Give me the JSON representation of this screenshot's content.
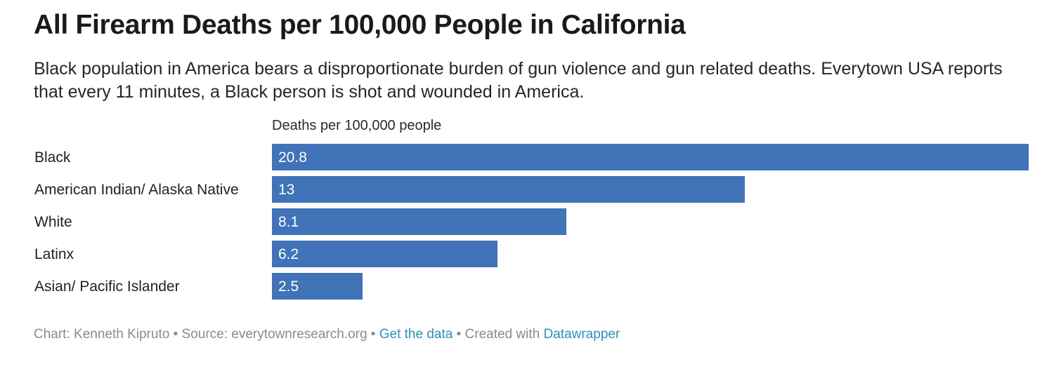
{
  "title": "All Firearm Deaths per 100,000 People in California",
  "subtitle": "Black population in America bears a disproportionate burden of gun violence and gun related deaths. Everytown USA reports that every 11 minutes, a Black person is shot and wounded in America.",
  "footer": {
    "chart_credit": "Chart: Kenneth Kipruto",
    "separator": " • ",
    "source": "Source: everytownresearch.org",
    "get_data_link": "Get the data",
    "created_with": "Created with",
    "datawrapper_link": "Datawrapper"
  },
  "colors": {
    "bar": "#4073b8",
    "link": "#2f8fb8"
  },
  "chart_data": {
    "type": "bar",
    "orientation": "horizontal",
    "title": "All Firearm Deaths per 100,000 People in California",
    "value_header": "Deaths per 100,000 people",
    "categories": [
      "Black",
      "American Indian/ Alaska Native",
      "White",
      "Latinx",
      "Asian/ Pacific Islander"
    ],
    "values": [
      20.8,
      13,
      8.1,
      6.2,
      2.5
    ],
    "value_labels": [
      "20.8",
      "13",
      "8.1",
      "6.2",
      "2.5"
    ],
    "xlim": [
      0,
      20.8
    ],
    "grid": false
  }
}
